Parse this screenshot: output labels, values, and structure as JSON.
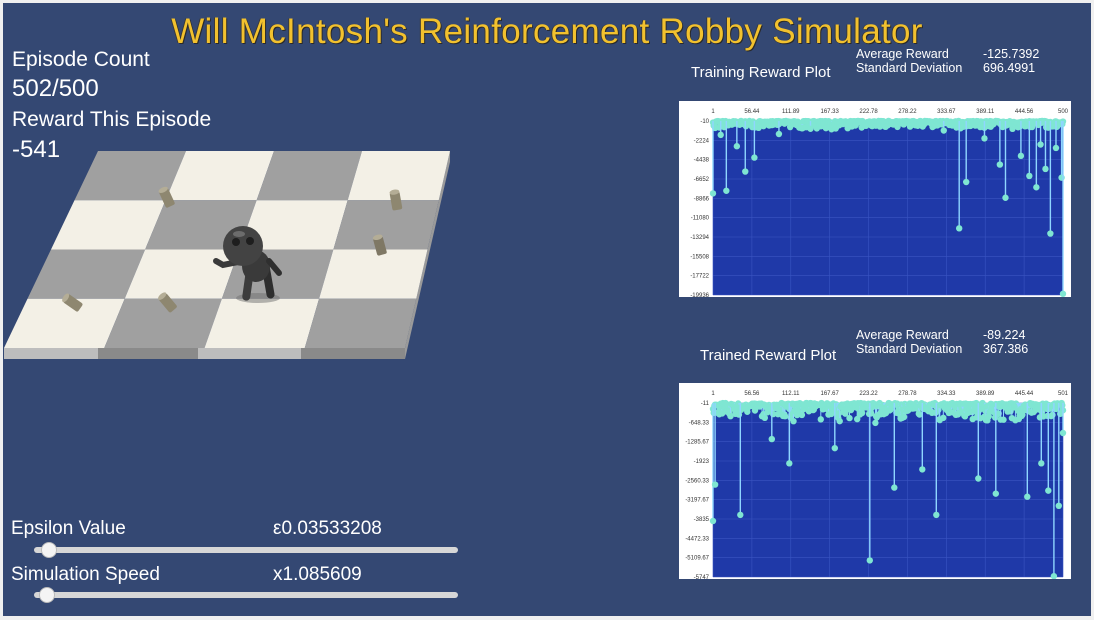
{
  "app": {
    "title": "Will McIntosh's Reinforcement Robby Simulator"
  },
  "episode": {
    "count_label": "Episode Count",
    "count_value": "502/500",
    "reward_label": "Reward This Episode",
    "reward_value": "-541"
  },
  "controls": {
    "epsilon": {
      "label": "Epsilon Value",
      "value": "ε0.03533208",
      "level": 0.035
    },
    "speed": {
      "label": "Simulation Speed",
      "value": "x1.085609",
      "level": 0.03
    }
  },
  "training_plot": {
    "title": "Training Reward Plot",
    "stats": {
      "average_label": "Average Reward",
      "average_value": "-125.7392",
      "std_label": "Standard Deviation",
      "std_value": "696.4991"
    },
    "x_ticks": [
      "1",
      "56.44",
      "111.89",
      "167.33",
      "222.78",
      "278.22",
      "333.67",
      "389.11",
      "444.56",
      "500"
    ],
    "y_ticks": [
      "-10",
      "-2224",
      "-4438",
      "-6652",
      "-8866",
      "-11080",
      "-13294",
      "-15508",
      "-17722",
      "-19936"
    ],
    "chart_data": {
      "type": "scatter",
      "xlim": [
        1,
        500
      ],
      "ylim": [
        -19936,
        -10
      ],
      "episodes": 500,
      "dips": [
        {
          "x": 1,
          "y": -8300
        },
        {
          "x": 12,
          "y": -1600
        },
        {
          "x": 20,
          "y": -8000
        },
        {
          "x": 35,
          "y": -2900
        },
        {
          "x": 47,
          "y": -5800
        },
        {
          "x": 60,
          "y": -4200
        },
        {
          "x": 95,
          "y": -1500
        },
        {
          "x": 140,
          "y": -900
        },
        {
          "x": 330,
          "y": -1100
        },
        {
          "x": 352,
          "y": -12300
        },
        {
          "x": 362,
          "y": -7000
        },
        {
          "x": 388,
          "y": -2000
        },
        {
          "x": 410,
          "y": -5000
        },
        {
          "x": 418,
          "y": -8800
        },
        {
          "x": 440,
          "y": -4000
        },
        {
          "x": 452,
          "y": -6300
        },
        {
          "x": 462,
          "y": -7600
        },
        {
          "x": 468,
          "y": -2700
        },
        {
          "x": 475,
          "y": -5500
        },
        {
          "x": 482,
          "y": -12900
        },
        {
          "x": 490,
          "y": -3100
        },
        {
          "x": 498,
          "y": -6500
        },
        {
          "x": 500,
          "y": -19800
        }
      ]
    }
  },
  "trained_plot": {
    "title": "Trained Reward Plot",
    "stats": {
      "average_label": "Average Reward",
      "average_value": "-89.224",
      "std_label": "Standard Deviation",
      "std_value": "367.386"
    },
    "x_ticks": [
      "1",
      "56.56",
      "112.11",
      "167.67",
      "223.22",
      "278.78",
      "334.33",
      "389.89",
      "445.44",
      "501"
    ],
    "y_ticks": [
      "-11",
      "-648.33",
      "-1285.67",
      "-1923",
      "-2560.33",
      "-3197.67",
      "-3835",
      "-4472.33",
      "-5109.67",
      "-5747"
    ],
    "chart_data": {
      "type": "scatter",
      "xlim": [
        1,
        501
      ],
      "ylim": [
        -5747,
        -11
      ],
      "episodes": 501,
      "dips": [
        {
          "x": 1,
          "y": -3900
        },
        {
          "x": 4,
          "y": -2700
        },
        {
          "x": 40,
          "y": -3700
        },
        {
          "x": 85,
          "y": -1200
        },
        {
          "x": 110,
          "y": -2000
        },
        {
          "x": 175,
          "y": -1500
        },
        {
          "x": 225,
          "y": -5200
        },
        {
          "x": 260,
          "y": -2800
        },
        {
          "x": 300,
          "y": -2200
        },
        {
          "x": 320,
          "y": -3700
        },
        {
          "x": 380,
          "y": -2500
        },
        {
          "x": 405,
          "y": -3000
        },
        {
          "x": 450,
          "y": -3100
        },
        {
          "x": 470,
          "y": -2000
        },
        {
          "x": 480,
          "y": -2900
        },
        {
          "x": 488,
          "y": -5720
        },
        {
          "x": 495,
          "y": -3400
        },
        {
          "x": 501,
          "y": -1000
        }
      ]
    }
  },
  "colors": {
    "background": "#344873",
    "title": "#f2c12e",
    "plot_bg": "#1f39a8",
    "marker": "#7fe6d2",
    "stem": "#8fd6ff"
  }
}
